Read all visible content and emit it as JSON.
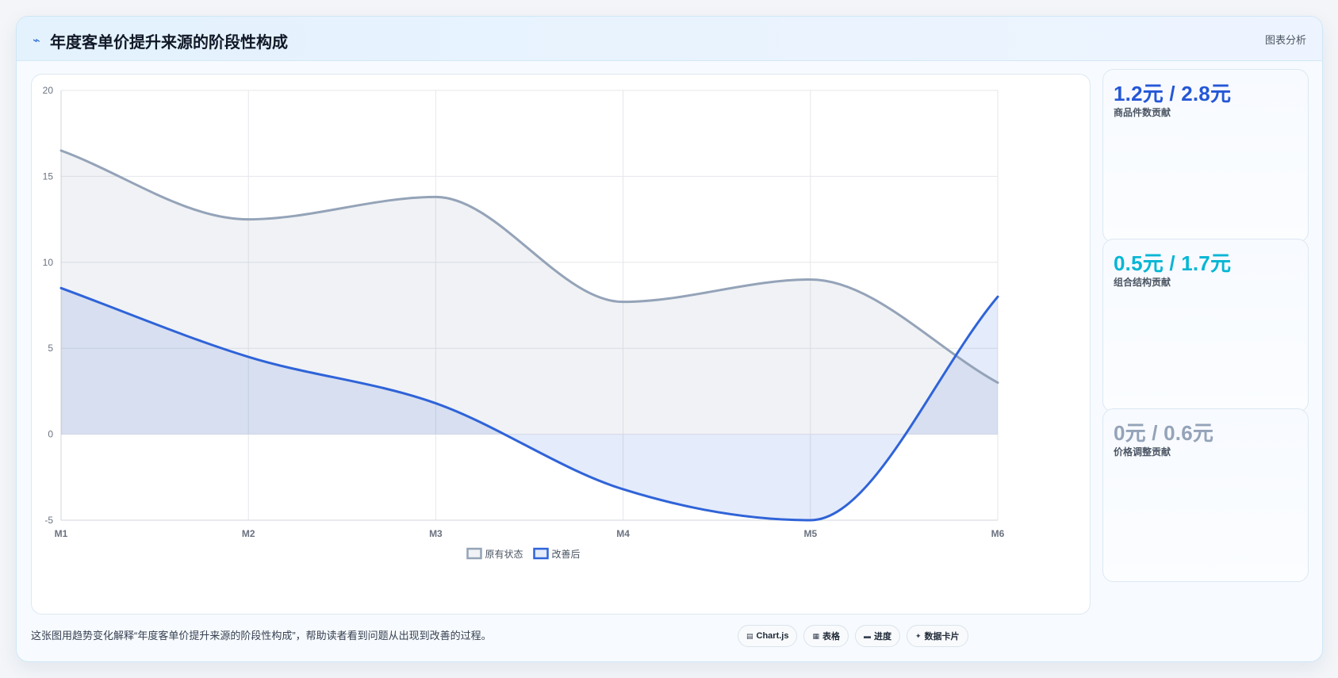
{
  "header": {
    "title": "年度客单价提升来源的阶段性构成",
    "icon": "chart-line-icon",
    "tag": "图表分析"
  },
  "kpis": [
    {
      "value": "1.2元 / 2.8元",
      "label": "商品件数贡献",
      "color": "#2557d6"
    },
    {
      "value": "0.5元 / 1.7元",
      "label": "组合结构贡献",
      "color": "#06b6d4"
    },
    {
      "value": "0元 / 0.6元",
      "label": "价格调整贡献",
      "color": "#94a3b8"
    }
  ],
  "caption": "这张图用趋势变化解释“年度客单价提升来源的阶段性构成”，帮助读者看到问题从出现到改善的过程。",
  "chips": [
    {
      "icon": "chart-icon",
      "glyph": "▤",
      "label": "Chart.js"
    },
    {
      "icon": "table-icon",
      "glyph": "▦",
      "label": "表格"
    },
    {
      "icon": "progress-icon",
      "glyph": "▬",
      "label": "进度"
    },
    {
      "icon": "sparkle-icon",
      "glyph": "✦",
      "label": "数据卡片"
    }
  ],
  "chart_data": {
    "type": "line",
    "categories": [
      "M1",
      "M2",
      "M3",
      "M4",
      "M5",
      "M6"
    ],
    "ylim": [
      -5,
      20
    ],
    "yticks": [
      -5,
      0,
      5,
      10,
      15,
      20
    ],
    "grid": true,
    "legend_position": "bottom",
    "series": [
      {
        "name": "原有状态",
        "values": [
          16.5,
          12.5,
          13.8,
          7.7,
          9.0,
          3.0
        ],
        "color": "#94a3b8",
        "fill": "rgba(148,163,184,0.14)"
      },
      {
        "name": "改善后",
        "values": [
          8.5,
          4.5,
          1.8,
          -3.2,
          -5.0,
          8.0
        ],
        "color": "#2f63d8",
        "fill": "rgba(47,99,216,0.13)"
      }
    ]
  }
}
